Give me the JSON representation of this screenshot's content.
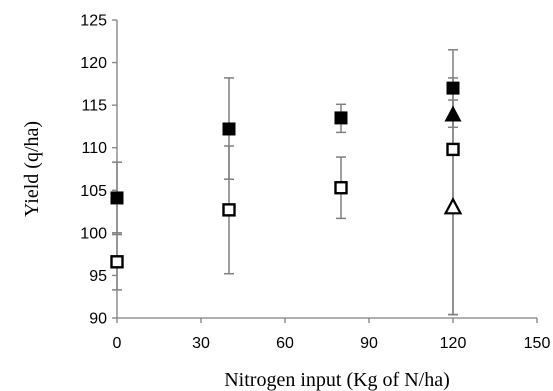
{
  "chart_data": {
    "type": "scatter",
    "title": "",
    "xlabel": "Nitrogen input  (Kg of N/ha)",
    "ylabel": "Yield (q/ha)",
    "xlim": [
      0,
      150
    ],
    "ylim": [
      90,
      125
    ],
    "x_ticks": [
      "0",
      "30",
      "60",
      "90",
      "120",
      "150"
    ],
    "y_ticks": [
      "90",
      "95",
      "100",
      "105",
      "110",
      "115",
      "120",
      "125"
    ],
    "grid": false,
    "legend": "none",
    "series": [
      {
        "marker": "filled-square",
        "color": "#000000",
        "points": [
          {
            "x": 0,
            "y": 104.1,
            "err_low": 99.8,
            "err_high": 108.3
          },
          {
            "x": 40,
            "y": 112.2,
            "err_low": 106.3,
            "err_high": 118.2
          },
          {
            "x": 80,
            "y": 113.5,
            "err_low": 111.8,
            "err_high": 115.1
          },
          {
            "x": 120,
            "y": 117.0,
            "err_low": 112.4,
            "err_high": 121.5
          }
        ]
      },
      {
        "marker": "open-square",
        "color": "#000000",
        "points": [
          {
            "x": 0,
            "y": 96.6,
            "err_low": 93.3,
            "err_high": 100.0
          },
          {
            "x": 40,
            "y": 102.7,
            "err_low": 95.2,
            "err_high": 110.2
          },
          {
            "x": 80,
            "y": 105.3,
            "err_low": 101.7,
            "err_high": 108.9
          },
          {
            "x": 120,
            "y": 109.8,
            "err_low": 90.4,
            "err_high": 118.2
          }
        ]
      },
      {
        "marker": "filled-triangle",
        "color": "#000000",
        "points": [
          {
            "x": 120,
            "y": 113.9
          }
        ]
      },
      {
        "marker": "open-triangle",
        "color": "#000000",
        "points": [
          {
            "x": 120,
            "y": 103.0,
            "err_low": 90.4,
            "err_high": 115.6
          }
        ]
      }
    ]
  }
}
